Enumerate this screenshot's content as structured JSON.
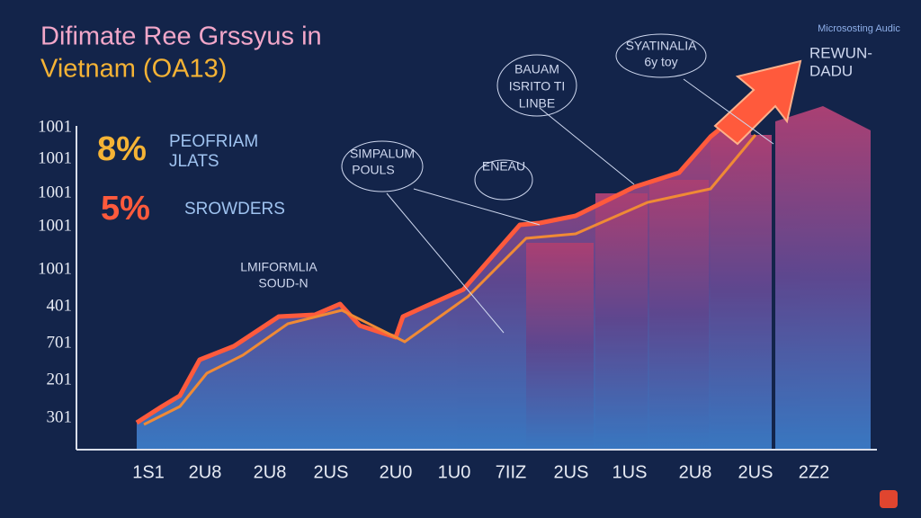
{
  "header": {
    "title_line1": "Difimate Ree Grssyus in",
    "title_line2": "Vietnam (OA13)",
    "logo": "Micrososting Audic"
  },
  "y_labels": [
    "1001",
    "1001",
    "1001",
    "1001",
    "1001",
    "401",
    "701",
    "201",
    "301"
  ],
  "x_labels": [
    "1S1",
    "2U8",
    "2U8",
    "2US",
    "2U0",
    "1U0",
    "7IIZ",
    "2US",
    "1US",
    "2U8",
    "2US",
    "2Z2"
  ],
  "stats": [
    {
      "value": "8%",
      "label_line1": "PEOFRIAM",
      "label_line2": "JLATS"
    },
    {
      "value": "5%",
      "label_line1": "SROWDERS"
    }
  ],
  "callouts": [
    {
      "line1": "SYATINALIA",
      "line2": "6y toy"
    },
    {
      "line1": "BAUAM",
      "line2": "ISRITO TI",
      "line3": "LINBE"
    },
    {
      "line1": "SIMPALUM",
      "line2": "POULS"
    },
    {
      "line1": "ENEAU"
    },
    {
      "line1": "LMIFORMLIA",
      "line2": "SOUD-N"
    },
    {
      "line1": "REWUN-",
      "line2": "DADU"
    }
  ]
}
